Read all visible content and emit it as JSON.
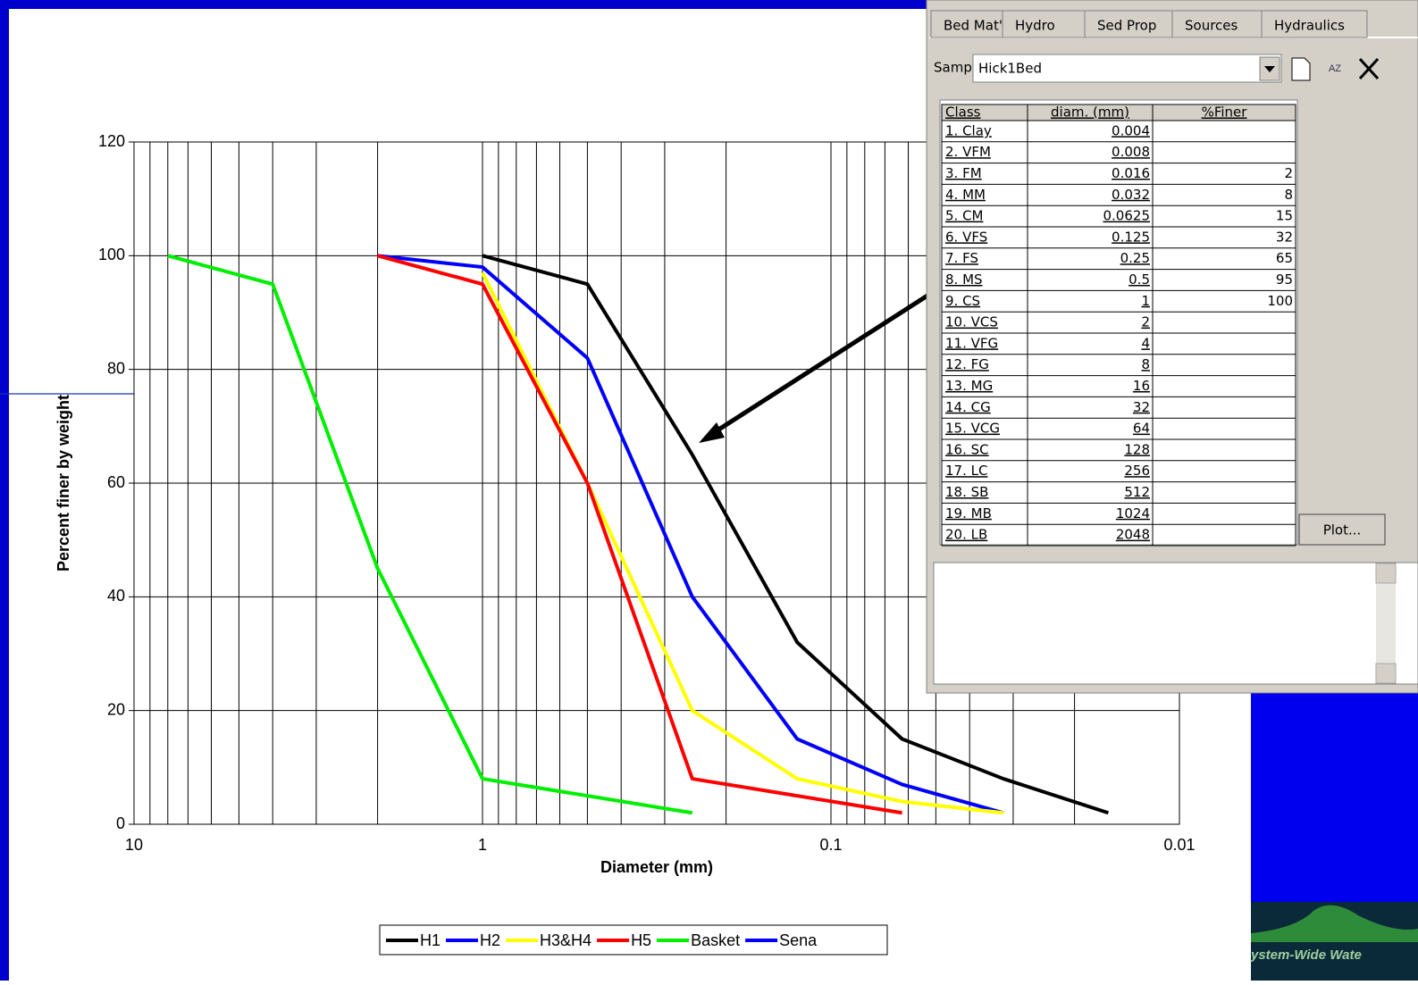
{
  "chart_data": {
    "type": "line",
    "xlabel": "Diameter (mm)",
    "ylabel": "Percent finer by weight",
    "log_x": true,
    "xlim": [
      10,
      0.01
    ],
    "xticks": [
      10,
      1,
      0.1,
      0.01
    ],
    "xminor_ticks": [
      9,
      8,
      7,
      6,
      5,
      4,
      3,
      2,
      0.9,
      0.8,
      0.7,
      0.6,
      0.5,
      0.4,
      0.3,
      0.2,
      0.09,
      0.08,
      0.07,
      0.06,
      0.05,
      0.04,
      0.03,
      0.02
    ],
    "ylim": [
      0,
      120
    ],
    "yticks": [
      0,
      20,
      40,
      60,
      80,
      100,
      120
    ],
    "grid": true,
    "legend": "bottom",
    "series": [
      {
        "name": "H1",
        "color": "#000000",
        "x": [
          1,
          0.5,
          0.25,
          0.125,
          0.0625,
          0.032,
          0.016
        ],
        "values": [
          100,
          95,
          65,
          32,
          15,
          8,
          2
        ]
      },
      {
        "name": "H2",
        "color": "#0000ff",
        "x": [
          2,
          1,
          0.5,
          0.25,
          0.125,
          0.0625,
          0.032
        ],
        "values": [
          100,
          98,
          82,
          40,
          15,
          7,
          2
        ]
      },
      {
        "name": "H3&H4",
        "color": "#ffff00",
        "x": [
          1,
          0.5,
          0.25,
          0.125,
          0.0625,
          0.032
        ],
        "values": [
          97,
          60,
          20,
          8,
          4,
          2
        ]
      },
      {
        "name": "H5",
        "color": "#ff0000",
        "x": [
          2,
          1,
          0.5,
          0.25,
          0.0625
        ],
        "values": [
          100,
          95,
          60,
          8,
          2
        ]
      },
      {
        "name": "Basket",
        "color": "#00ee00",
        "x": [
          8,
          4,
          2,
          1,
          0.25
        ],
        "values": [
          100,
          95,
          45,
          8,
          2
        ]
      },
      {
        "name": "Sena",
        "color": "#0000ff",
        "x": [],
        "values": []
      }
    ]
  },
  "dialog": {
    "tabs": [
      "Bed Mat'l",
      "Hydro",
      "Sed Prop",
      "Sources",
      "Hydraulics"
    ],
    "sampling_label": "Sampling",
    "sampling_value": "Hick1Bed",
    "table": {
      "headers": [
        "Class",
        "diam. (mm)",
        "%Finer"
      ],
      "rows": [
        [
          "1. Clay",
          "0.004",
          null
        ],
        [
          "2. VFM",
          "0.008",
          null
        ],
        [
          "3. FM",
          "0.016",
          "2"
        ],
        [
          "4. MM",
          "0.032",
          "8"
        ],
        [
          "5. CM",
          "0.0625",
          "15"
        ],
        [
          "6. VFS",
          "0.125",
          "32"
        ],
        [
          "7. FS",
          "0.25",
          "65"
        ],
        [
          "8. MS",
          "0.5",
          "95"
        ],
        [
          "9. CS",
          "1",
          "100"
        ],
        [
          "10. VCS",
          "2",
          null
        ],
        [
          "11. VFG",
          "4",
          null
        ],
        [
          "12. FG",
          "8",
          null
        ],
        [
          "13. MG",
          "16",
          null
        ],
        [
          "14. CG",
          "32",
          null
        ],
        [
          "15. VCG",
          "64",
          null
        ],
        [
          "16. SC",
          "128",
          null
        ],
        [
          "17. LC",
          "256",
          null
        ],
        [
          "18. SB",
          "512",
          null
        ],
        [
          "19. MB",
          "1024",
          null
        ],
        [
          "20. LB",
          "2048",
          null
        ]
      ]
    },
    "plot_button": "Plot..."
  },
  "logo_text": "ystem-Wide Wate"
}
